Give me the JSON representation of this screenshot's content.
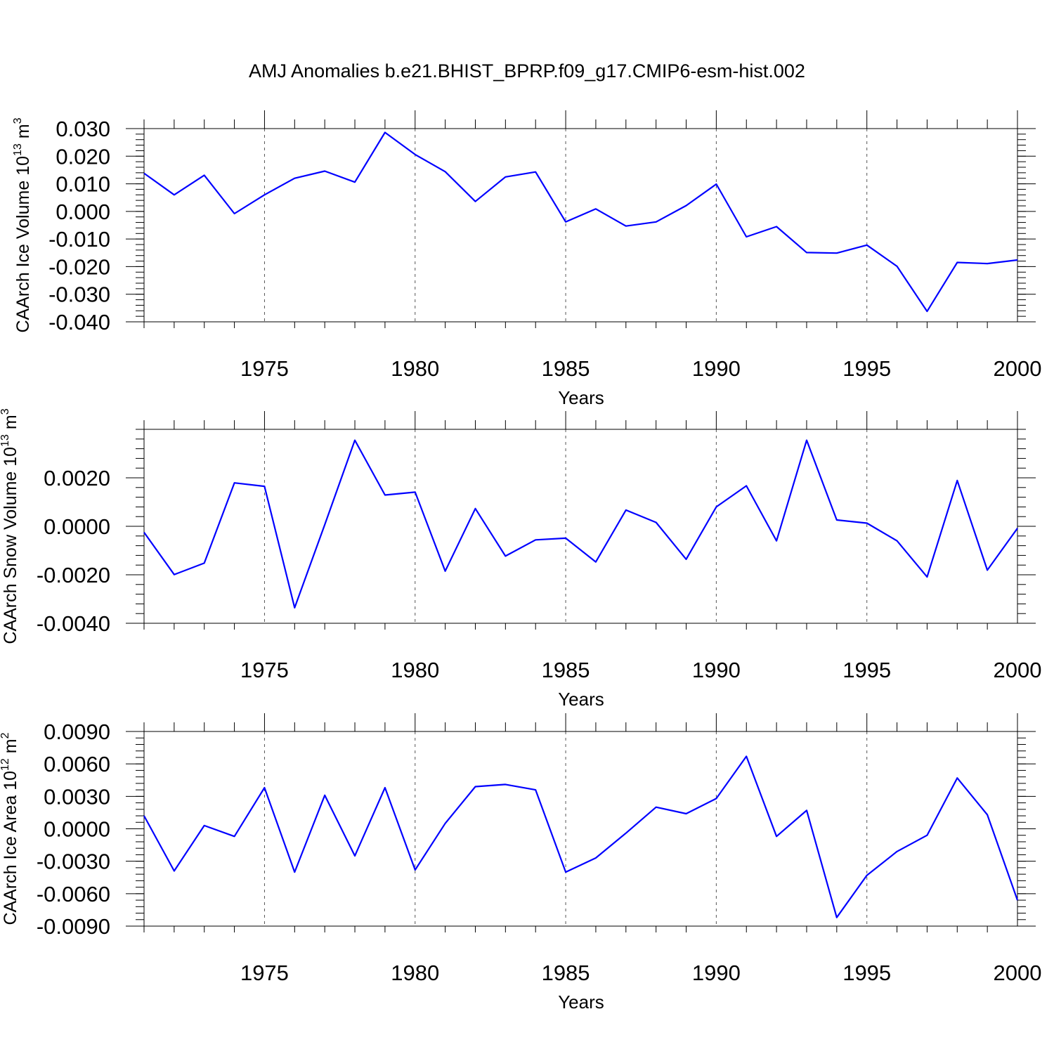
{
  "title": "AMJ Anomalies b.e21.BHIST_BPRP.f09_g17.CMIP6-esm-hist.002",
  "line_color": "#0000ff",
  "chart_data": [
    {
      "type": "line",
      "ylabel": "CAArch Ice Volume 10",
      "ylabel_exp": "13",
      "ylabel_unit": "m",
      "ylabel_unit_exp": "3",
      "xlabel": "Years",
      "xlim": [
        1971,
        2000
      ],
      "ylim": [
        -0.04,
        0.03
      ],
      "x_ticks": [
        1975,
        1980,
        1985,
        1990,
        1995,
        2000
      ],
      "x_tick_labels": [
        "1975",
        "1980",
        "1985",
        "1990",
        "1995",
        "2000"
      ],
      "y_ticks": [
        -0.04,
        -0.03,
        -0.02,
        -0.01,
        0.0,
        0.01,
        0.02,
        0.03
      ],
      "y_tick_labels": [
        "-0.040",
        "-0.030",
        "-0.020",
        "-0.010",
        "0.000",
        "0.010",
        "0.020",
        "0.030"
      ],
      "grid": "vertical dashed at major x ticks",
      "x": [
        1971,
        1972,
        1973,
        1974,
        1975,
        1976,
        1977,
        1978,
        1979,
        1980,
        1981,
        1982,
        1983,
        1984,
        1985,
        1986,
        1987,
        1988,
        1989,
        1990,
        1991,
        1992,
        1993,
        1994,
        1995,
        1996,
        1997,
        1998,
        1999,
        2000
      ],
      "values": [
        0.0138,
        0.006,
        0.0131,
        -0.0008,
        0.006,
        0.012,
        0.0146,
        0.0106,
        0.0286,
        0.0206,
        0.0144,
        0.0036,
        0.0125,
        0.0143,
        -0.0038,
        0.0009,
        -0.0053,
        -0.0038,
        0.0021,
        0.0099,
        -0.0092,
        -0.0055,
        -0.0149,
        -0.0151,
        -0.0122,
        -0.0199,
        -0.0362,
        -0.0185,
        -0.0189,
        -0.0176
      ]
    },
    {
      "type": "line",
      "ylabel": "CAArch Snow Volume 10",
      "ylabel_exp": "13",
      "ylabel_unit": "m",
      "ylabel_unit_exp": "3",
      "xlabel": "Years",
      "xlim": [
        1971,
        2000
      ],
      "ylim": [
        -0.004,
        0.004
      ],
      "x_ticks": [
        1975,
        1980,
        1985,
        1990,
        1995,
        2000
      ],
      "x_tick_labels": [
        "1975",
        "1980",
        "1985",
        "1990",
        "1995",
        "2000"
      ],
      "y_ticks": [
        -0.004,
        -0.002,
        0.0,
        0.002
      ],
      "y_tick_labels": [
        "-0.0040",
        "-0.0020",
        "0.0000",
        "0.0020"
      ],
      "grid": "vertical dashed at major x ticks",
      "x": [
        1971,
        1972,
        1973,
        1974,
        1975,
        1976,
        1977,
        1978,
        1979,
        1980,
        1981,
        1982,
        1983,
        1984,
        1985,
        1986,
        1987,
        1988,
        1989,
        1990,
        1991,
        1992,
        1993,
        1994,
        1995,
        1996,
        1997,
        1998,
        1999,
        2000
      ],
      "values": [
        -0.00025,
        -0.00199,
        -0.00152,
        0.00179,
        0.00165,
        -0.00336,
        7e-05,
        0.00355,
        0.00129,
        0.00141,
        -0.00185,
        0.00073,
        -0.00123,
        -0.00056,
        -0.00049,
        -0.00147,
        0.00067,
        0.00016,
        -0.00136,
        0.0008,
        0.00167,
        -0.0006,
        0.00355,
        0.00026,
        0.00013,
        -0.0006,
        -0.00209,
        0.00189,
        -0.00181,
        -8e-05
      ]
    },
    {
      "type": "line",
      "ylabel": "CAArch Ice Area 10",
      "ylabel_exp": "12",
      "ylabel_unit": "m",
      "ylabel_unit_exp": "2",
      "xlabel": "Years",
      "xlim": [
        1971,
        2000
      ],
      "ylim": [
        -0.009,
        0.009
      ],
      "x_ticks": [
        1975,
        1980,
        1985,
        1990,
        1995,
        2000
      ],
      "x_tick_labels": [
        "1975",
        "1980",
        "1985",
        "1990",
        "1995",
        "2000"
      ],
      "y_ticks": [
        -0.009,
        -0.006,
        -0.003,
        0.0,
        0.003,
        0.006,
        0.009
      ],
      "y_tick_labels": [
        "-0.0090",
        "-0.0060",
        "-0.0030",
        "0.0000",
        "0.0030",
        "0.0060",
        "0.0090"
      ],
      "grid": "vertical dashed at major x ticks",
      "x": [
        1971,
        1972,
        1973,
        1974,
        1975,
        1976,
        1977,
        1978,
        1979,
        1980,
        1981,
        1982,
        1983,
        1984,
        1985,
        1986,
        1987,
        1988,
        1989,
        1990,
        1991,
        1992,
        1993,
        1994,
        1995,
        1996,
        1997,
        1998,
        1999,
        2000
      ],
      "values": [
        0.0012,
        -0.0039,
        0.0003,
        -0.0007,
        0.0038,
        -0.004,
        0.0031,
        -0.0025,
        0.0038,
        -0.0038,
        0.0005,
        0.0039,
        0.0041,
        0.0036,
        -0.004,
        -0.0027,
        -0.0004,
        0.002,
        0.0014,
        0.0028,
        0.0067,
        -0.0007,
        0.0017,
        -0.0082,
        -0.0043,
        -0.0021,
        -0.0006,
        0.0047,
        0.0013,
        -0.0066
      ]
    }
  ]
}
